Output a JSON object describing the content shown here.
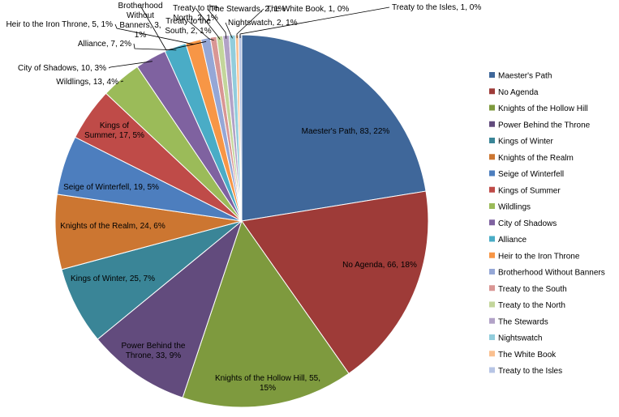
{
  "chart_data": {
    "type": "pie",
    "title": "",
    "legend_position": "right",
    "slices": [
      {
        "name": "Maester's Path",
        "value": 83,
        "percent": "22%",
        "color": "#3F679A",
        "label": [
          "Maester's Path, 83, 22%"
        ]
      },
      {
        "name": "No Agenda",
        "value": 66,
        "percent": "18%",
        "color": "#9E3B38",
        "label": [
          "No Agenda, 66, 18%"
        ]
      },
      {
        "name": "Knights of the Hollow Hill",
        "value": 55,
        "percent": "15%",
        "color": "#7E9A3E",
        "label": [
          "Knights of the Hollow Hill, 55,",
          "15%"
        ]
      },
      {
        "name": "Power Behind the Throne",
        "value": 33,
        "percent": "9%",
        "color": "#624B7D",
        "label": [
          "Power Behind the",
          "Throne, 33, 9%"
        ]
      },
      {
        "name": "Kings of Winter",
        "value": 25,
        "percent": "7%",
        "color": "#3A8597",
        "label": [
          "Kings of Winter, 25, 7%"
        ]
      },
      {
        "name": "Knights of the Realm",
        "value": 24,
        "percent": "6%",
        "color": "#CC7631",
        "label": [
          "Knights of the Realm, 24, 6%"
        ]
      },
      {
        "name": "Seige of Winterfell",
        "value": 19,
        "percent": "5%",
        "color": "#4D7EBE",
        "label": [
          "Seige of Winterfell, 19, 5%"
        ]
      },
      {
        "name": "Kings of Summer",
        "value": 17,
        "percent": "5%",
        "color": "#BF4B48",
        "label": [
          "Kings of",
          "Summer, 17, 5%"
        ]
      },
      {
        "name": "Wildlings",
        "value": 13,
        "percent": "4%",
        "color": "#9BBB59",
        "label": [
          "Wildlings, 13, 4%"
        ]
      },
      {
        "name": "City of Shadows",
        "value": 10,
        "percent": "3%",
        "color": "#7F62A0",
        "label": [
          "City of Shadows, 10, 3%"
        ]
      },
      {
        "name": "Alliance",
        "value": 7,
        "percent": "2%",
        "color": "#4AACC6",
        "label": [
          "Alliance, 7, 2%"
        ]
      },
      {
        "name": "Heir to the Iron Throne",
        "value": 5,
        "percent": "1%",
        "color": "#F79646",
        "label": [
          "Heir to the Iron Throne, 5, 1%"
        ]
      },
      {
        "name": "Brotherhood Without Banners",
        "value": 3,
        "percent": "1%",
        "color": "#95A7D6",
        "label": [
          "Brotherhood",
          "Without",
          "Banners, 3,",
          "1%"
        ]
      },
      {
        "name": "Treaty to the South",
        "value": 2,
        "percent": "1%",
        "color": "#D99694",
        "label": [
          "Treaty to the",
          "South, 2, 1%"
        ]
      },
      {
        "name": "Treaty to the North",
        "value": 2,
        "percent": "1%",
        "color": "#C3D69B",
        "label": [
          "Treaty to the",
          "North, 2, 1%"
        ]
      },
      {
        "name": "The Stewards",
        "value": 2,
        "percent": "1%",
        "color": "#B2A2C7",
        "label": [
          "The Stewards, 2, 1%"
        ]
      },
      {
        "name": "Nightswatch",
        "value": 2,
        "percent": "1%",
        "color": "#92CDDC",
        "label": [
          "Nightswatch, 2, 1%"
        ]
      },
      {
        "name": "The White Book",
        "value": 1,
        "percent": "0%",
        "color": "#FAC090",
        "label": [
          "The White Book, 1, 0%"
        ]
      },
      {
        "name": "Treaty to the Isles",
        "value": 1,
        "percent": "0%",
        "color": "#B7C5E5",
        "label": [
          "Treaty to the Isles, 1, 0%"
        ]
      }
    ]
  }
}
